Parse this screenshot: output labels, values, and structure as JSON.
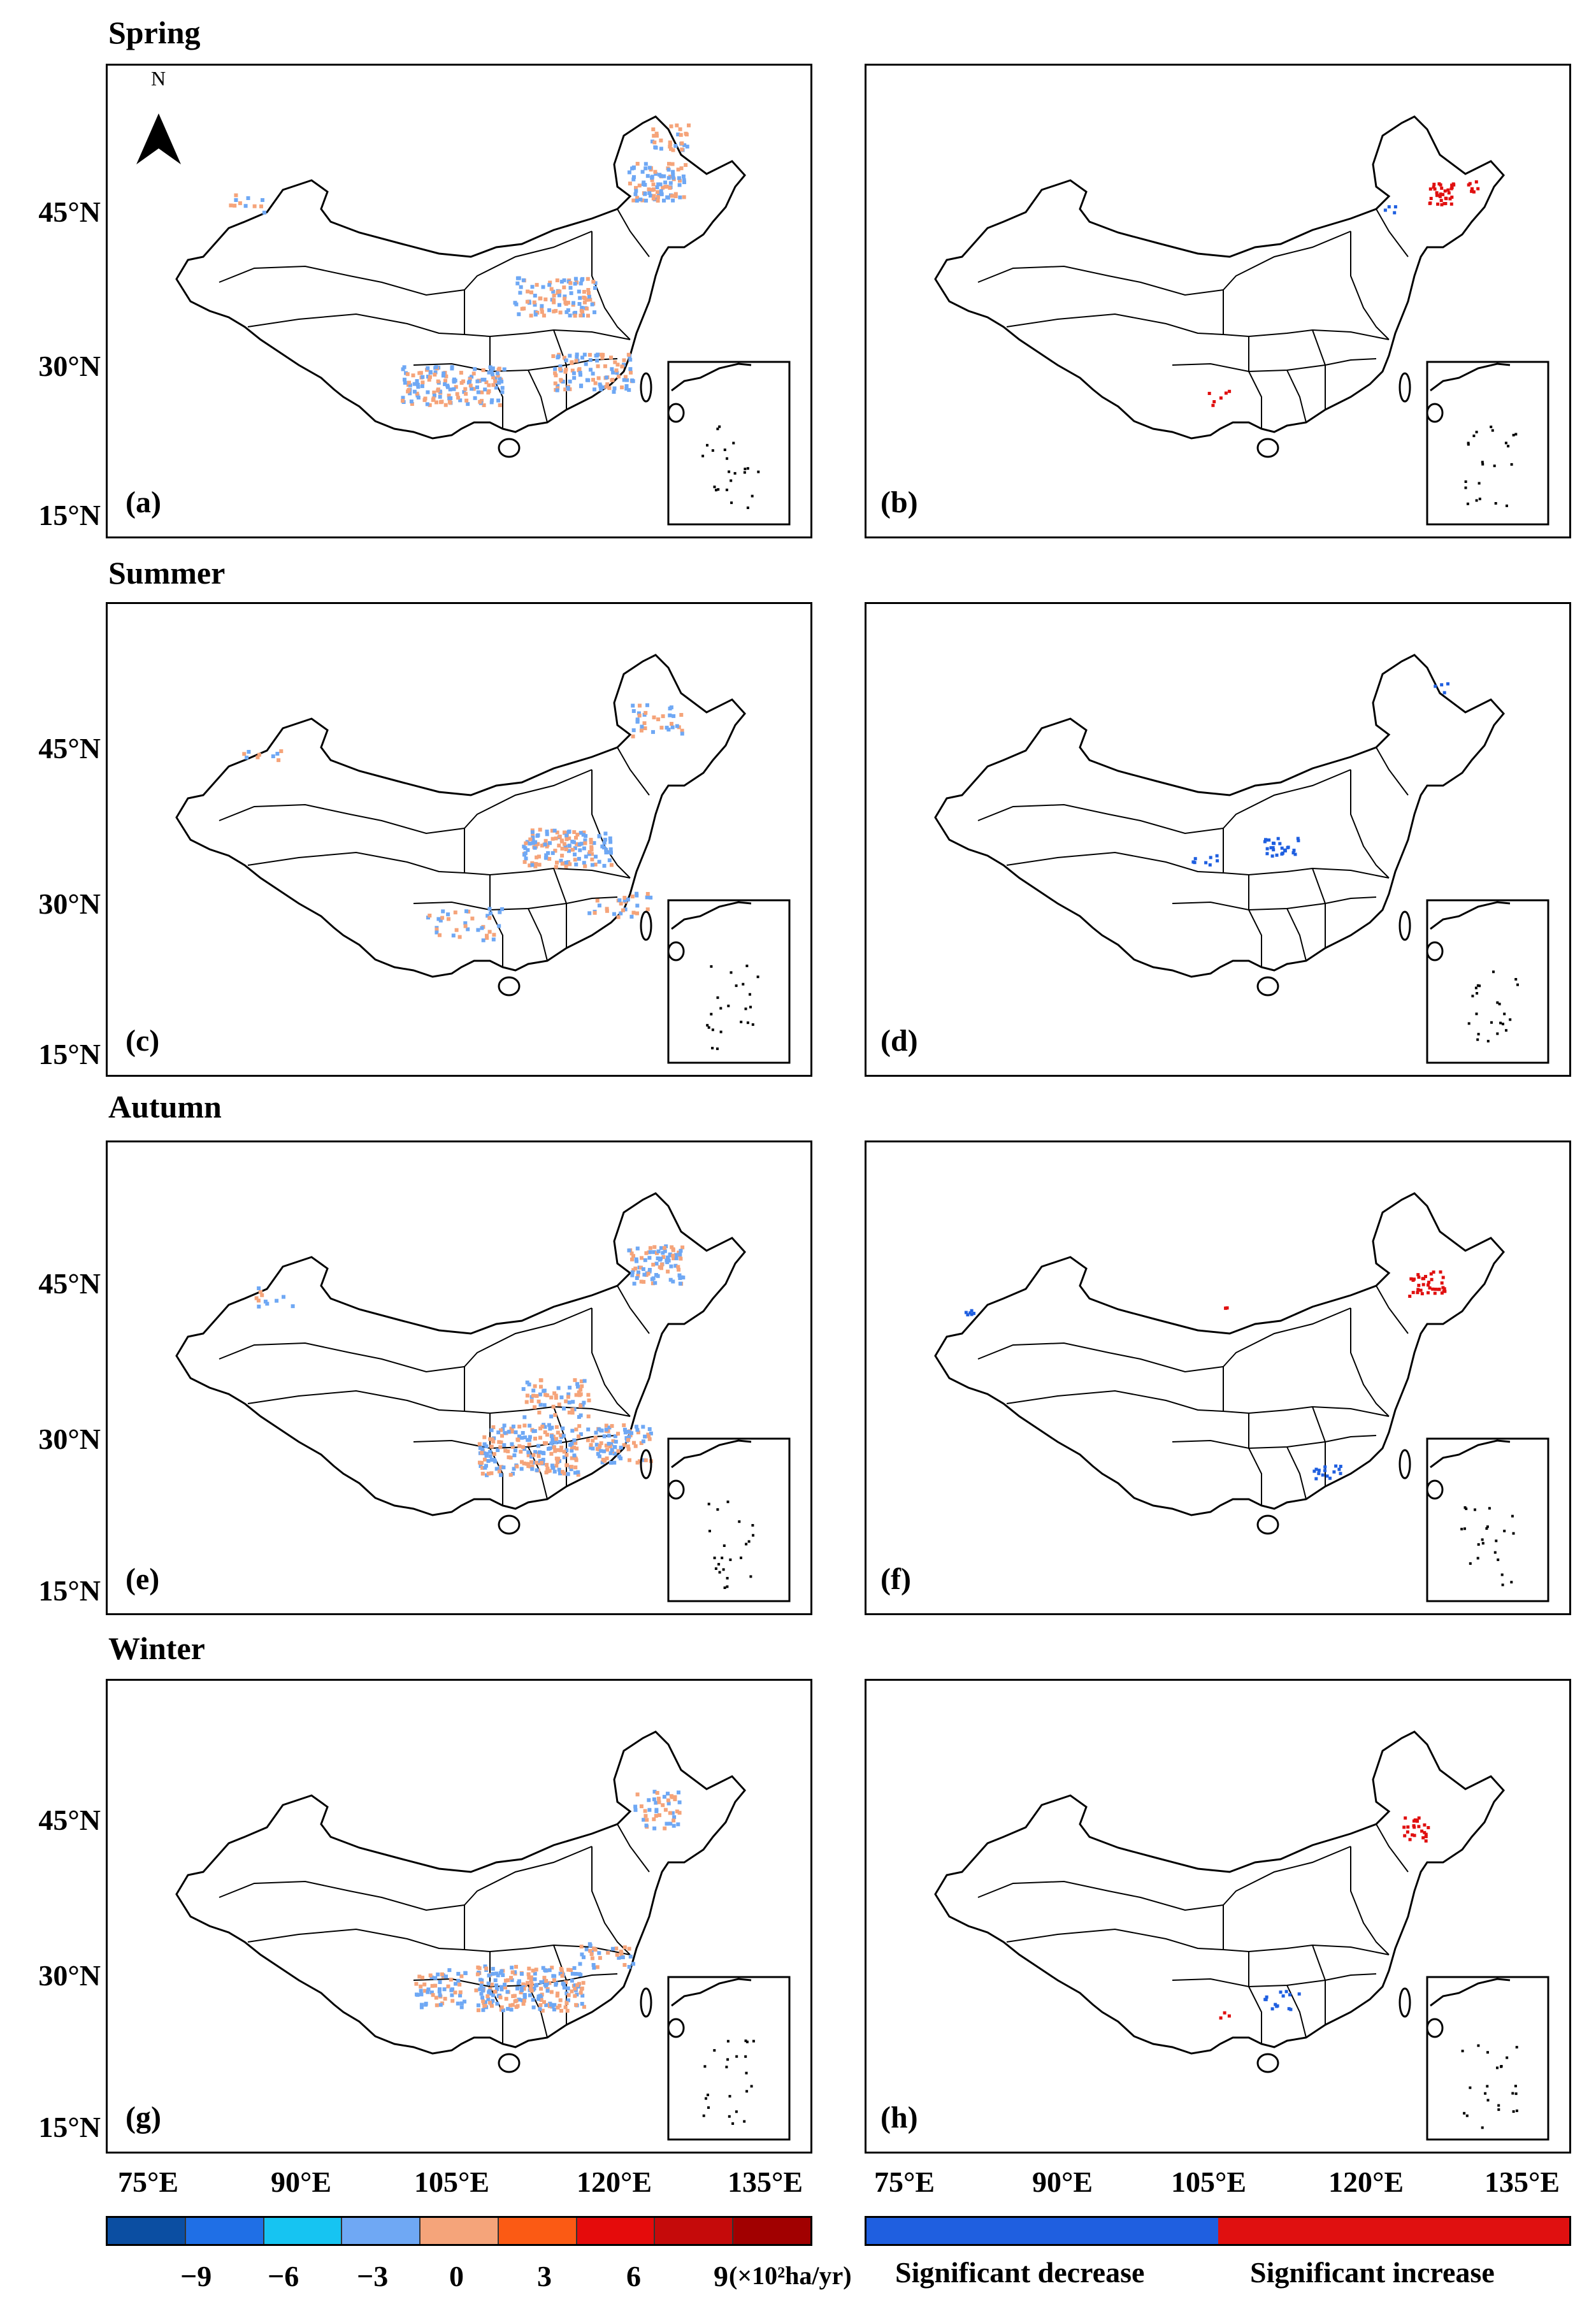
{
  "seasons": {
    "spring": "Spring",
    "summer": "Summer",
    "autumn": "Autumn",
    "winter": "Winter"
  },
  "panels": {
    "a": "(a)",
    "b": "(b)",
    "c": "(c)",
    "d": "(d)",
    "e": "(e)",
    "f": "(f)",
    "g": "(g)",
    "h": "(h)"
  },
  "lat_labels": [
    "45°N",
    "30°N",
    "15°N"
  ],
  "lon_labels": [
    "75°E",
    "90°E",
    "105°E",
    "120°E",
    "135°E"
  ],
  "colorbar": {
    "colors": [
      "#0b4ea2",
      "#1f6fe6",
      "#16c4f2",
      "#6fa8f4",
      "#f5a47a",
      "#fb5a14",
      "#e50b0b",
      "#c50a0a",
      "#a10000"
    ],
    "ticks": [
      "−9",
      "−6",
      "−3",
      "0",
      "3",
      "6",
      "9"
    ],
    "unit": "(×10²ha/yr)"
  },
  "significance": {
    "decrease_color": "#1f5fe0",
    "increase_color": "#e01010",
    "decrease_label": "Significant decrease",
    "increase_label": "Significant increase"
  },
  "map": {
    "north_arrow_label": "N"
  }
}
